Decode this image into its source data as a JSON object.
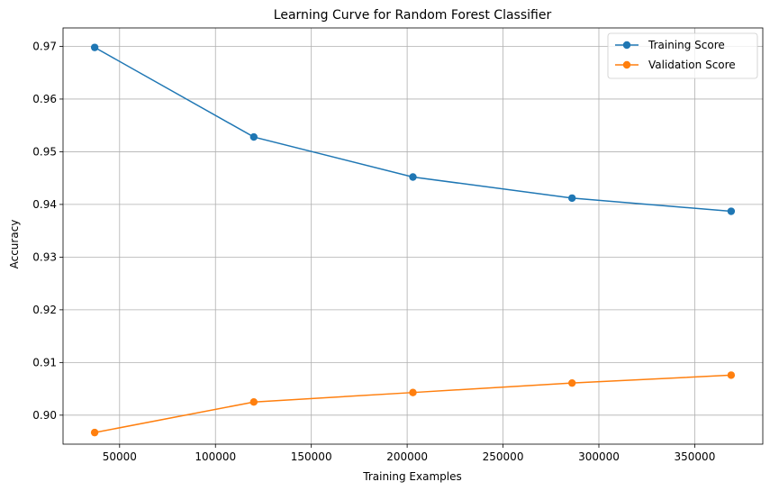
{
  "chart_data": {
    "type": "line",
    "title": "Learning Curve for Random Forest Classifier",
    "xlabel": "Training Examples",
    "ylabel": "Accuracy",
    "x": [
      37000,
      120000,
      203000,
      286000,
      369000
    ],
    "xlim": [
      20500,
      385500
    ],
    "ylim": [
      0.8945,
      0.9735
    ],
    "xticks": [
      50000,
      100000,
      150000,
      200000,
      250000,
      300000,
      350000
    ],
    "xtick_labels": [
      "50000",
      "100000",
      "150000",
      "200000",
      "250000",
      "300000",
      "350000"
    ],
    "yticks": [
      0.9,
      0.91,
      0.92,
      0.93,
      0.94,
      0.95,
      0.96,
      0.97
    ],
    "ytick_labels": [
      "0.90",
      "0.91",
      "0.92",
      "0.93",
      "0.94",
      "0.95",
      "0.96",
      "0.97"
    ],
    "grid": true,
    "legend_position": "top-right",
    "series": [
      {
        "name": "Training Score",
        "color": "#1f77b4",
        "values": [
          0.9698,
          0.9528,
          0.9452,
          0.9412,
          0.9387
        ]
      },
      {
        "name": "Validation Score",
        "color": "#ff7f0e",
        "values": [
          0.8967,
          0.9025,
          0.9043,
          0.9061,
          0.9076
        ]
      }
    ]
  }
}
